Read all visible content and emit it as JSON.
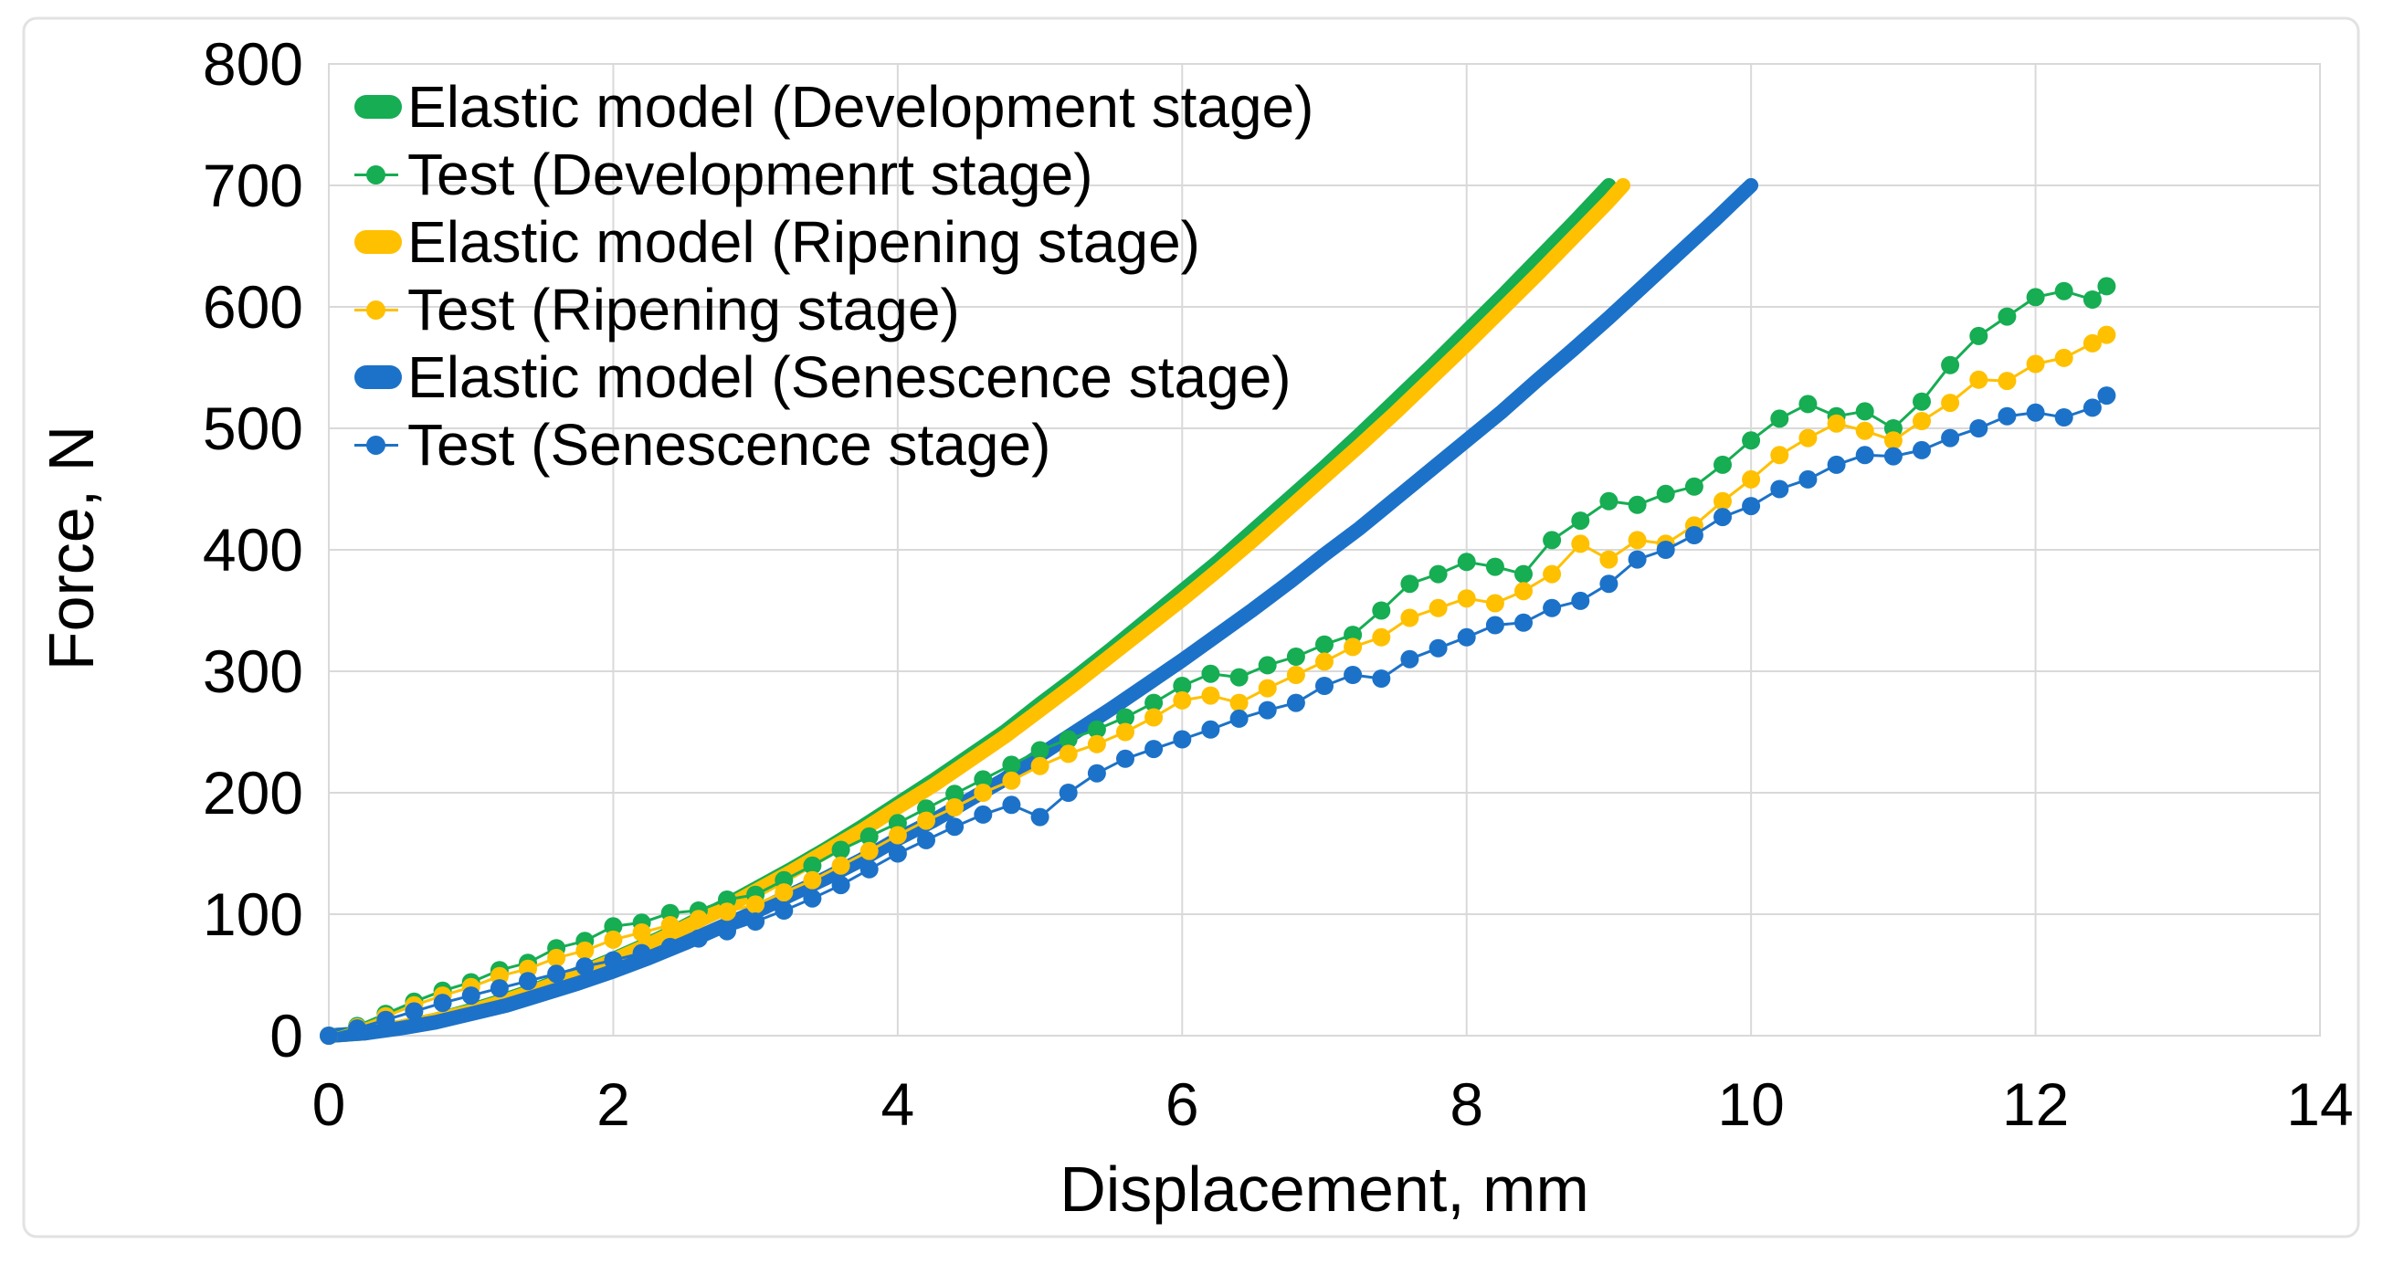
{
  "figure": {
    "background": "#ffffff",
    "border_color": "#e2e2e2"
  },
  "chart_data": {
    "type": "line",
    "title": "",
    "xlabel": "Displacement, mm",
    "ylabel": "Force, N",
    "xlim": [
      0,
      14
    ],
    "ylim": [
      0,
      800
    ],
    "x_ticks": [
      0,
      2,
      4,
      6,
      8,
      10,
      12,
      14
    ],
    "y_ticks": [
      0,
      100,
      200,
      300,
      400,
      500,
      600,
      700,
      800
    ],
    "grid": "on",
    "grid_color": "#d9d9d9",
    "tick_color": "#000000",
    "legend_position": "top-left",
    "series": [
      {
        "id": "elastic-development",
        "name": "Elastic model (Development stage)",
        "kind": "line",
        "color": "#16ad53",
        "points": [
          [
            0,
            0
          ],
          [
            0.25,
            2
          ],
          [
            0.5,
            7
          ],
          [
            0.75,
            13
          ],
          [
            1,
            21
          ],
          [
            1.25,
            30
          ],
          [
            1.5,
            40
          ],
          [
            1.75,
            51
          ],
          [
            2,
            63
          ],
          [
            2.25,
            76
          ],
          [
            2.5,
            90
          ],
          [
            2.75,
            105
          ],
          [
            3,
            121
          ],
          [
            3.25,
            137
          ],
          [
            3.5,
            154
          ],
          [
            3.75,
            172
          ],
          [
            4,
            191
          ],
          [
            4.25,
            210
          ],
          [
            4.5,
            230
          ],
          [
            4.75,
            250
          ],
          [
            5,
            273
          ],
          [
            5.25,
            295
          ],
          [
            5.5,
            318
          ],
          [
            5.75,
            342
          ],
          [
            6,
            366
          ],
          [
            6.25,
            390
          ],
          [
            6.5,
            416
          ],
          [
            6.75,
            442
          ],
          [
            7,
            468
          ],
          [
            7.25,
            495
          ],
          [
            7.5,
            523
          ],
          [
            7.75,
            551
          ],
          [
            8,
            580
          ],
          [
            8.25,
            609
          ],
          [
            8.5,
            639
          ],
          [
            8.75,
            669
          ],
          [
            9,
            700
          ]
        ]
      },
      {
        "id": "test-development",
        "name": "Test (Developmenrt stage)",
        "kind": "scatter",
        "color": "#16ad53",
        "points": [
          [
            0,
            0
          ],
          [
            0.2,
            8
          ],
          [
            0.4,
            18
          ],
          [
            0.6,
            28
          ],
          [
            0.8,
            37
          ],
          [
            1,
            44
          ],
          [
            1.2,
            54
          ],
          [
            1.4,
            60
          ],
          [
            1.6,
            72
          ],
          [
            1.8,
            78
          ],
          [
            2,
            90
          ],
          [
            2.2,
            93
          ],
          [
            2.4,
            101
          ],
          [
            2.6,
            103
          ],
          [
            2.8,
            112
          ],
          [
            3,
            116
          ],
          [
            3.2,
            128
          ],
          [
            3.4,
            140
          ],
          [
            3.6,
            153
          ],
          [
            3.8,
            164
          ],
          [
            4,
            175
          ],
          [
            4.2,
            187
          ],
          [
            4.4,
            199
          ],
          [
            4.6,
            211
          ],
          [
            4.8,
            223
          ],
          [
            5,
            235
          ],
          [
            5.2,
            244
          ],
          [
            5.4,
            252
          ],
          [
            5.6,
            262
          ],
          [
            5.8,
            274
          ],
          [
            6,
            288
          ],
          [
            6.2,
            298
          ],
          [
            6.4,
            295
          ],
          [
            6.6,
            305
          ],
          [
            6.8,
            312
          ],
          [
            7,
            322
          ],
          [
            7.2,
            330
          ],
          [
            7.4,
            350
          ],
          [
            7.6,
            372
          ],
          [
            7.8,
            380
          ],
          [
            8,
            390
          ],
          [
            8.2,
            386
          ],
          [
            8.4,
            380
          ],
          [
            8.6,
            408
          ],
          [
            8.8,
            424
          ],
          [
            9,
            440
          ],
          [
            9.2,
            437
          ],
          [
            9.4,
            446
          ],
          [
            9.6,
            452
          ],
          [
            9.8,
            470
          ],
          [
            10,
            490
          ],
          [
            10.2,
            508
          ],
          [
            10.4,
            520
          ],
          [
            10.6,
            510
          ],
          [
            10.8,
            514
          ],
          [
            11,
            500
          ],
          [
            11.2,
            522
          ],
          [
            11.4,
            552
          ],
          [
            11.6,
            576
          ],
          [
            11.8,
            592
          ],
          [
            12,
            608
          ],
          [
            12.2,
            613
          ],
          [
            12.4,
            606
          ],
          [
            12.5,
            617
          ]
        ]
      },
      {
        "id": "elastic-ripening",
        "name": "Elastic model (Ripening stage)",
        "kind": "line",
        "color": "#ffc000",
        "points": [
          [
            0,
            0
          ],
          [
            0.25,
            2
          ],
          [
            0.5,
            7
          ],
          [
            0.75,
            13
          ],
          [
            1,
            20
          ],
          [
            1.25,
            29
          ],
          [
            1.5,
            39
          ],
          [
            1.75,
            50
          ],
          [
            2,
            62
          ],
          [
            2.25,
            75
          ],
          [
            2.5,
            89
          ],
          [
            2.75,
            103
          ],
          [
            3,
            119
          ],
          [
            3.25,
            135
          ],
          [
            3.5,
            152
          ],
          [
            3.75,
            169
          ],
          [
            4,
            188
          ],
          [
            4.25,
            206
          ],
          [
            4.5,
            226
          ],
          [
            4.75,
            246
          ],
          [
            5,
            268
          ],
          [
            5.25,
            290
          ],
          [
            5.5,
            313
          ],
          [
            5.75,
            336
          ],
          [
            6,
            359
          ],
          [
            6.25,
            383
          ],
          [
            6.5,
            408
          ],
          [
            6.75,
            434
          ],
          [
            7,
            460
          ],
          [
            7.25,
            486
          ],
          [
            7.5,
            513
          ],
          [
            7.75,
            541
          ],
          [
            8,
            569
          ],
          [
            8.25,
            598
          ],
          [
            8.5,
            627
          ],
          [
            8.75,
            657
          ],
          [
            9,
            687
          ],
          [
            9.1,
            700
          ]
        ]
      },
      {
        "id": "test-ripening",
        "name": "Test (Ripening stage)",
        "kind": "scatter",
        "color": "#ffc000",
        "points": [
          [
            0,
            0
          ],
          [
            0.2,
            7
          ],
          [
            0.4,
            16
          ],
          [
            0.6,
            25
          ],
          [
            0.8,
            33
          ],
          [
            1,
            40
          ],
          [
            1.2,
            49
          ],
          [
            1.4,
            55
          ],
          [
            1.6,
            64
          ],
          [
            1.8,
            70
          ],
          [
            2,
            79
          ],
          [
            2.2,
            85
          ],
          [
            2.4,
            91
          ],
          [
            2.6,
            96
          ],
          [
            2.8,
            102
          ],
          [
            3,
            108
          ],
          [
            3.2,
            118
          ],
          [
            3.4,
            128
          ],
          [
            3.6,
            140
          ],
          [
            3.8,
            152
          ],
          [
            4,
            165
          ],
          [
            4.2,
            177
          ],
          [
            4.4,
            188
          ],
          [
            4.6,
            200
          ],
          [
            4.8,
            210
          ],
          [
            5,
            222
          ],
          [
            5.2,
            232
          ],
          [
            5.4,
            240
          ],
          [
            5.6,
            250
          ],
          [
            5.8,
            262
          ],
          [
            6,
            276
          ],
          [
            6.2,
            280
          ],
          [
            6.4,
            274
          ],
          [
            6.6,
            286
          ],
          [
            6.8,
            297
          ],
          [
            7,
            308
          ],
          [
            7.2,
            320
          ],
          [
            7.4,
            328
          ],
          [
            7.6,
            344
          ],
          [
            7.8,
            352
          ],
          [
            8,
            360
          ],
          [
            8.2,
            356
          ],
          [
            8.4,
            366
          ],
          [
            8.6,
            380
          ],
          [
            8.8,
            405
          ],
          [
            9,
            392
          ],
          [
            9.2,
            408
          ],
          [
            9.4,
            405
          ],
          [
            9.6,
            420
          ],
          [
            9.8,
            440
          ],
          [
            10,
            458
          ],
          [
            10.2,
            478
          ],
          [
            10.4,
            492
          ],
          [
            10.6,
            504
          ],
          [
            10.8,
            498
          ],
          [
            11,
            490
          ],
          [
            11.2,
            506
          ],
          [
            11.4,
            521
          ],
          [
            11.6,
            540
          ],
          [
            11.8,
            539
          ],
          [
            12,
            553
          ],
          [
            12.2,
            558
          ],
          [
            12.4,
            570
          ],
          [
            12.5,
            577
          ]
        ]
      },
      {
        "id": "elastic-senescence",
        "name": "Elastic model (Senescence stage)",
        "kind": "line",
        "color": "#1c72c8",
        "points": [
          [
            0,
            0
          ],
          [
            0.25,
            2
          ],
          [
            0.5,
            6
          ],
          [
            0.75,
            11
          ],
          [
            1,
            18
          ],
          [
            1.25,
            25
          ],
          [
            1.5,
            34
          ],
          [
            1.75,
            43
          ],
          [
            2,
            53
          ],
          [
            2.25,
            64
          ],
          [
            2.5,
            76
          ],
          [
            2.75,
            89
          ],
          [
            3,
            102
          ],
          [
            3.25,
            116
          ],
          [
            3.5,
            130
          ],
          [
            3.75,
            145
          ],
          [
            4,
            162
          ],
          [
            4.25,
            177
          ],
          [
            4.5,
            194
          ],
          [
            4.75,
            211
          ],
          [
            5,
            231
          ],
          [
            5.25,
            250
          ],
          [
            5.5,
            269
          ],
          [
            5.75,
            289
          ],
          [
            6,
            309
          ],
          [
            6.25,
            330
          ],
          [
            6.5,
            351
          ],
          [
            6.75,
            373
          ],
          [
            7,
            396
          ],
          [
            7.25,
            418
          ],
          [
            7.5,
            442
          ],
          [
            7.75,
            466
          ],
          [
            8,
            490
          ],
          [
            8.25,
            514
          ],
          [
            8.5,
            540
          ],
          [
            8.75,
            565
          ],
          [
            9,
            591
          ],
          [
            9.25,
            618
          ],
          [
            9.5,
            645
          ],
          [
            9.75,
            672
          ],
          [
            10,
            700
          ]
        ]
      },
      {
        "id": "test-senescence",
        "name": "Test (Senescence stage)",
        "kind": "scatter",
        "color": "#1c72c8",
        "points": [
          [
            0,
            0
          ],
          [
            0.2,
            6
          ],
          [
            0.4,
            13
          ],
          [
            0.6,
            20
          ],
          [
            0.8,
            27
          ],
          [
            1,
            33
          ],
          [
            1.2,
            39
          ],
          [
            1.4,
            45
          ],
          [
            1.6,
            51
          ],
          [
            1.8,
            57
          ],
          [
            2,
            62
          ],
          [
            2.2,
            68
          ],
          [
            2.4,
            73
          ],
          [
            2.6,
            80
          ],
          [
            2.8,
            86
          ],
          [
            3,
            94
          ],
          [
            3.2,
            103
          ],
          [
            3.4,
            113
          ],
          [
            3.6,
            124
          ],
          [
            3.8,
            137
          ],
          [
            4,
            150
          ],
          [
            4.2,
            161
          ],
          [
            4.4,
            172
          ],
          [
            4.6,
            182
          ],
          [
            4.8,
            190
          ],
          [
            5,
            180
          ],
          [
            5.2,
            200
          ],
          [
            5.4,
            216
          ],
          [
            5.6,
            228
          ],
          [
            5.8,
            236
          ],
          [
            6,
            244
          ],
          [
            6.2,
            252
          ],
          [
            6.4,
            261
          ],
          [
            6.6,
            268
          ],
          [
            6.8,
            274
          ],
          [
            7,
            288
          ],
          [
            7.2,
            297
          ],
          [
            7.4,
            294
          ],
          [
            7.6,
            310
          ],
          [
            7.8,
            319
          ],
          [
            8,
            328
          ],
          [
            8.2,
            338
          ],
          [
            8.4,
            340
          ],
          [
            8.6,
            352
          ],
          [
            8.8,
            358
          ],
          [
            9,
            372
          ],
          [
            9.2,
            392
          ],
          [
            9.4,
            400
          ],
          [
            9.6,
            412
          ],
          [
            9.8,
            427
          ],
          [
            10,
            436
          ],
          [
            10.2,
            450
          ],
          [
            10.4,
            458
          ],
          [
            10.6,
            470
          ],
          [
            10.8,
            478
          ],
          [
            11,
            477
          ],
          [
            11.2,
            482
          ],
          [
            11.4,
            492
          ],
          [
            11.6,
            500
          ],
          [
            11.8,
            510
          ],
          [
            12,
            513
          ],
          [
            12.2,
            509
          ],
          [
            12.4,
            517
          ],
          [
            12.5,
            527
          ]
        ]
      }
    ]
  }
}
